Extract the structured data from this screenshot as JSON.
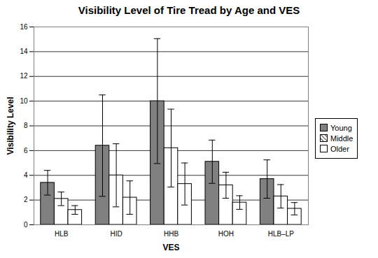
{
  "chart_data": {
    "type": "bar",
    "title": "Visibility Level of Tire Tread by Age and VES",
    "x_label": "VES",
    "y_label": "Visibility Level",
    "categories": [
      "HLB",
      "HID",
      "HHB",
      "HOH",
      "HLB–LP"
    ],
    "series": [
      {
        "name": "Young",
        "color": "#808080",
        "values": [
          3.4,
          6.4,
          10.0,
          5.1,
          3.7
        ],
        "errors": [
          1.0,
          4.1,
          5.05,
          1.75,
          1.55
        ]
      },
      {
        "name": "Middle",
        "color": "#000000",
        "line_style": "hatch",
        "values": [
          2.1,
          4.0,
          6.2,
          3.2,
          2.3
        ],
        "errors": [
          0.55,
          2.55,
          3.15,
          1.05,
          0.95
        ]
      },
      {
        "name": "Older",
        "color": "#ffffff",
        "values": [
          1.2,
          2.2,
          3.3,
          1.8,
          1.3
        ],
        "errors": [
          0.35,
          1.35,
          1.7,
          0.55,
          0.5
        ]
      }
    ],
    "ylim": [
      0,
      16
    ],
    "yticks": [
      0,
      2,
      4,
      6,
      8,
      10,
      12,
      14,
      16
    ],
    "grid": true,
    "legend": "right"
  }
}
